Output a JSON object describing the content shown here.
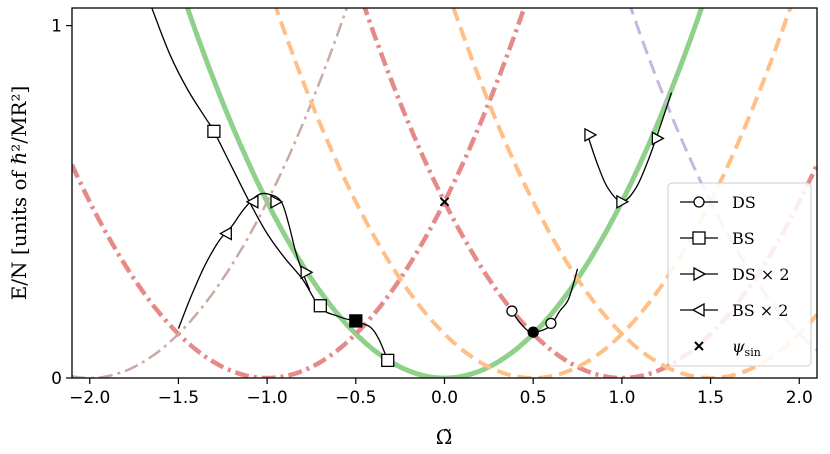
{
  "chart_data": {
    "type": "line",
    "xlabel": "Ω̃",
    "ylabel": "E/N [units of ℏ²/MR²]",
    "xlim": [
      -2.1,
      2.1
    ],
    "ylim": [
      0,
      1.05
    ],
    "xticks": [
      -2.0,
      -1.5,
      -1.0,
      -0.5,
      0.0,
      0.5,
      1.0,
      1.5,
      2.0
    ],
    "xtick_labels": [
      "−2.0",
      "−1.5",
      "−1.0",
      "−0.5",
      "0.0",
      "0.5",
      "1.0",
      "1.5",
      "2.0"
    ],
    "yticks": [
      0,
      1
    ],
    "ytick_labels": [
      "0",
      "1"
    ],
    "grid": false,
    "legend_position": "center-right",
    "parabolas": [
      {
        "center": 0.0,
        "color": "#8fd18a",
        "style": "solid",
        "width": 5
      },
      {
        "center": -1.0,
        "color": "#e58a89",
        "style": "dashdot",
        "width": 4.5
      },
      {
        "center": 1.0,
        "color": "#e58a89",
        "style": "dashdot",
        "width": 4.5
      },
      {
        "center": -2.0,
        "color": "#c9aaa4",
        "style": "dashdot",
        "width": 2.5
      },
      {
        "center": 0.5,
        "color": "#ffbf86",
        "style": "dashed",
        "width": 4
      },
      {
        "center": 1.5,
        "color": "#ffbf86",
        "style": "dashed",
        "width": 4
      },
      {
        "center": 2.5,
        "color": "#c8b6e0",
        "style": "dashed",
        "width": 3
      }
    ],
    "curves": [
      {
        "name": "curve-bs-left",
        "points": [
          [
            -1.65,
            1.05
          ],
          [
            -1.55,
            0.92
          ],
          [
            -1.45,
            0.82
          ],
          [
            -1.35,
            0.74
          ],
          [
            -1.3,
            0.7
          ],
          [
            -1.2,
            0.6
          ],
          [
            -1.1,
            0.5
          ],
          [
            -1.0,
            0.41
          ],
          [
            -0.9,
            0.34
          ],
          [
            -0.8,
            0.28
          ],
          [
            -0.7,
            0.2
          ],
          [
            -0.6,
            0.175
          ],
          [
            -0.5,
            0.16
          ],
          [
            -0.42,
            0.145
          ],
          [
            -0.37,
            0.11
          ],
          [
            -0.32,
            0.05
          ]
        ]
      },
      {
        "name": "curve-loop-left",
        "points": [
          [
            -1.5,
            0.14
          ],
          [
            -1.43,
            0.23
          ],
          [
            -1.35,
            0.32
          ],
          [
            -1.27,
            0.39
          ],
          [
            -1.2,
            0.43
          ],
          [
            -1.13,
            0.48
          ],
          [
            -1.05,
            0.52
          ],
          [
            -0.98,
            0.52
          ],
          [
            -0.92,
            0.5
          ],
          [
            -0.88,
            0.44
          ],
          [
            -0.84,
            0.36
          ],
          [
            -0.8,
            0.3
          ],
          [
            -0.76,
            0.25
          ]
        ]
      },
      {
        "name": "curve-ds-center",
        "points": [
          [
            0.37,
            0.2
          ],
          [
            0.42,
            0.16
          ],
          [
            0.48,
            0.13
          ],
          [
            0.5,
            0.13
          ],
          [
            0.55,
            0.135
          ],
          [
            0.6,
            0.15
          ],
          [
            0.65,
            0.19
          ],
          [
            0.7,
            0.225
          ],
          [
            0.75,
            0.31
          ]
        ]
      },
      {
        "name": "curve-ds-right",
        "points": [
          [
            0.8,
            0.7
          ],
          [
            0.86,
            0.61
          ],
          [
            0.92,
            0.54
          ],
          [
            1.0,
            0.5
          ],
          [
            1.08,
            0.54
          ],
          [
            1.15,
            0.62
          ],
          [
            1.22,
            0.72
          ],
          [
            1.28,
            0.81
          ]
        ]
      }
    ],
    "markers": {
      "ds": [
        [
          0.38,
          0.19
        ],
        [
          0.6,
          0.155
        ]
      ],
      "ds_filled": [
        [
          0.5,
          0.13
        ]
      ],
      "bs": [
        [
          -1.3,
          0.7
        ],
        [
          -0.7,
          0.205
        ],
        [
          -0.32,
          0.05
        ]
      ],
      "bs_filled": [
        [
          -0.5,
          0.162
        ]
      ],
      "ds2": [
        [
          -0.95,
          0.5
        ],
        [
          -0.78,
          0.3
        ],
        [
          0.82,
          0.69
        ],
        [
          1.0,
          0.5
        ],
        [
          1.2,
          0.68
        ]
      ],
      "bs2": [
        [
          -1.23,
          0.41
        ],
        [
          -1.08,
          0.5
        ]
      ],
      "psi": [
        [
          0.0,
          0.5
        ]
      ]
    },
    "legend": [
      {
        "marker": "circle",
        "label": "DS"
      },
      {
        "marker": "square",
        "label": "BS"
      },
      {
        "marker": "tri-right",
        "label": "DS × 2"
      },
      {
        "marker": "tri-left",
        "label": "BS × 2"
      },
      {
        "marker": "x",
        "label": "ψ_sin"
      }
    ]
  }
}
